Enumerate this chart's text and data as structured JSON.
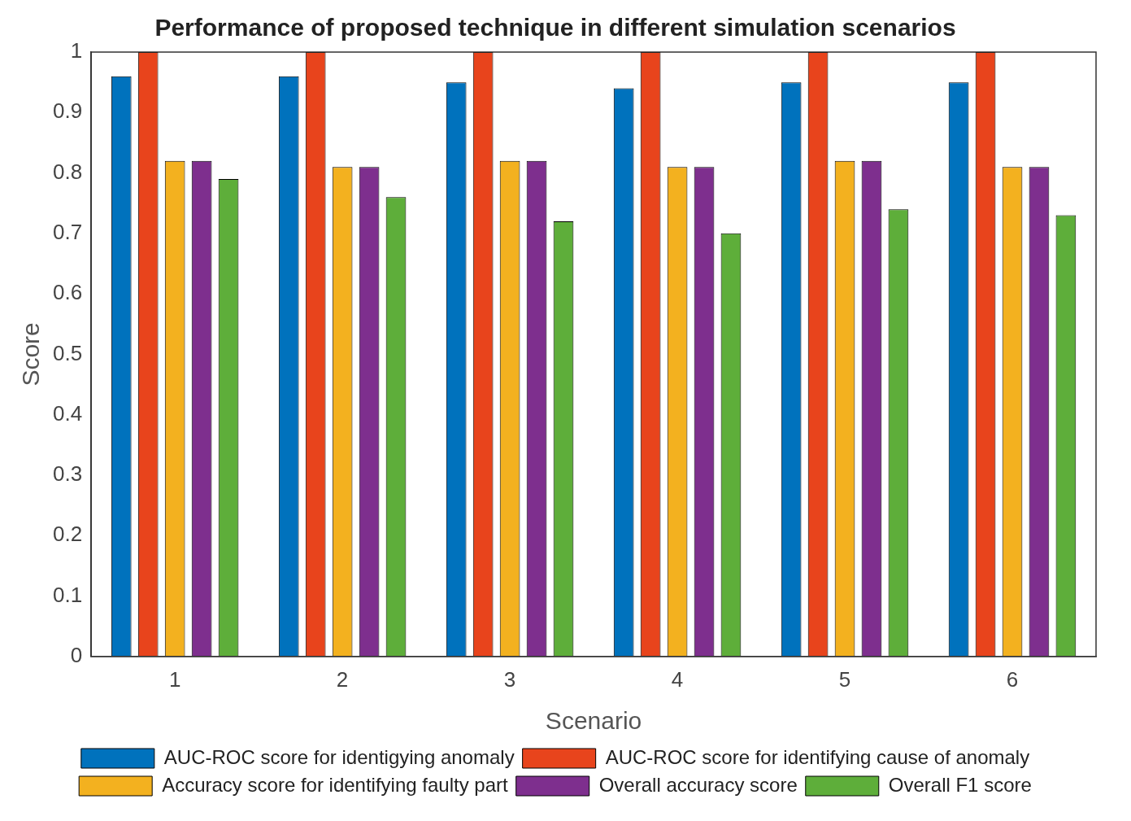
{
  "chart_data": {
    "type": "bar",
    "title": "Performance of proposed technique in different simulation scenarios",
    "xlabel": "Scenario",
    "ylabel": "Score",
    "categories": [
      "1",
      "2",
      "3",
      "4",
      "5",
      "6"
    ],
    "series": [
      {
        "name": "AUC-ROC score for identigying anomaly",
        "color": "#0072bd",
        "values": [
          0.96,
          0.96,
          0.95,
          0.94,
          0.95,
          0.95
        ]
      },
      {
        "name": "AUC-ROC score for identifying cause of anomaly",
        "color": "#e8441c",
        "values": [
          1,
          1,
          1,
          1,
          1,
          1
        ]
      },
      {
        "name": "Accuracy score for identifying faulty part",
        "color": "#f3b11f",
        "values": [
          0.82,
          0.81,
          0.82,
          0.81,
          0.82,
          0.81
        ]
      },
      {
        "name": "Overall accuracy score",
        "color": "#7e2f8e",
        "values": [
          0.82,
          0.81,
          0.82,
          0.81,
          0.82,
          0.81
        ]
      },
      {
        "name": "Overall F1 score",
        "color": "#5eae3a",
        "values": [
          0.79,
          0.76,
          0.72,
          0.7,
          0.74,
          0.73
        ]
      }
    ],
    "ylim": [
      0,
      1
    ],
    "yticks": [
      0,
      0.1,
      0.2,
      0.3,
      0.4,
      0.5,
      0.6,
      0.7,
      0.8,
      0.9,
      1
    ],
    "grid": false,
    "legend": "bottom"
  }
}
